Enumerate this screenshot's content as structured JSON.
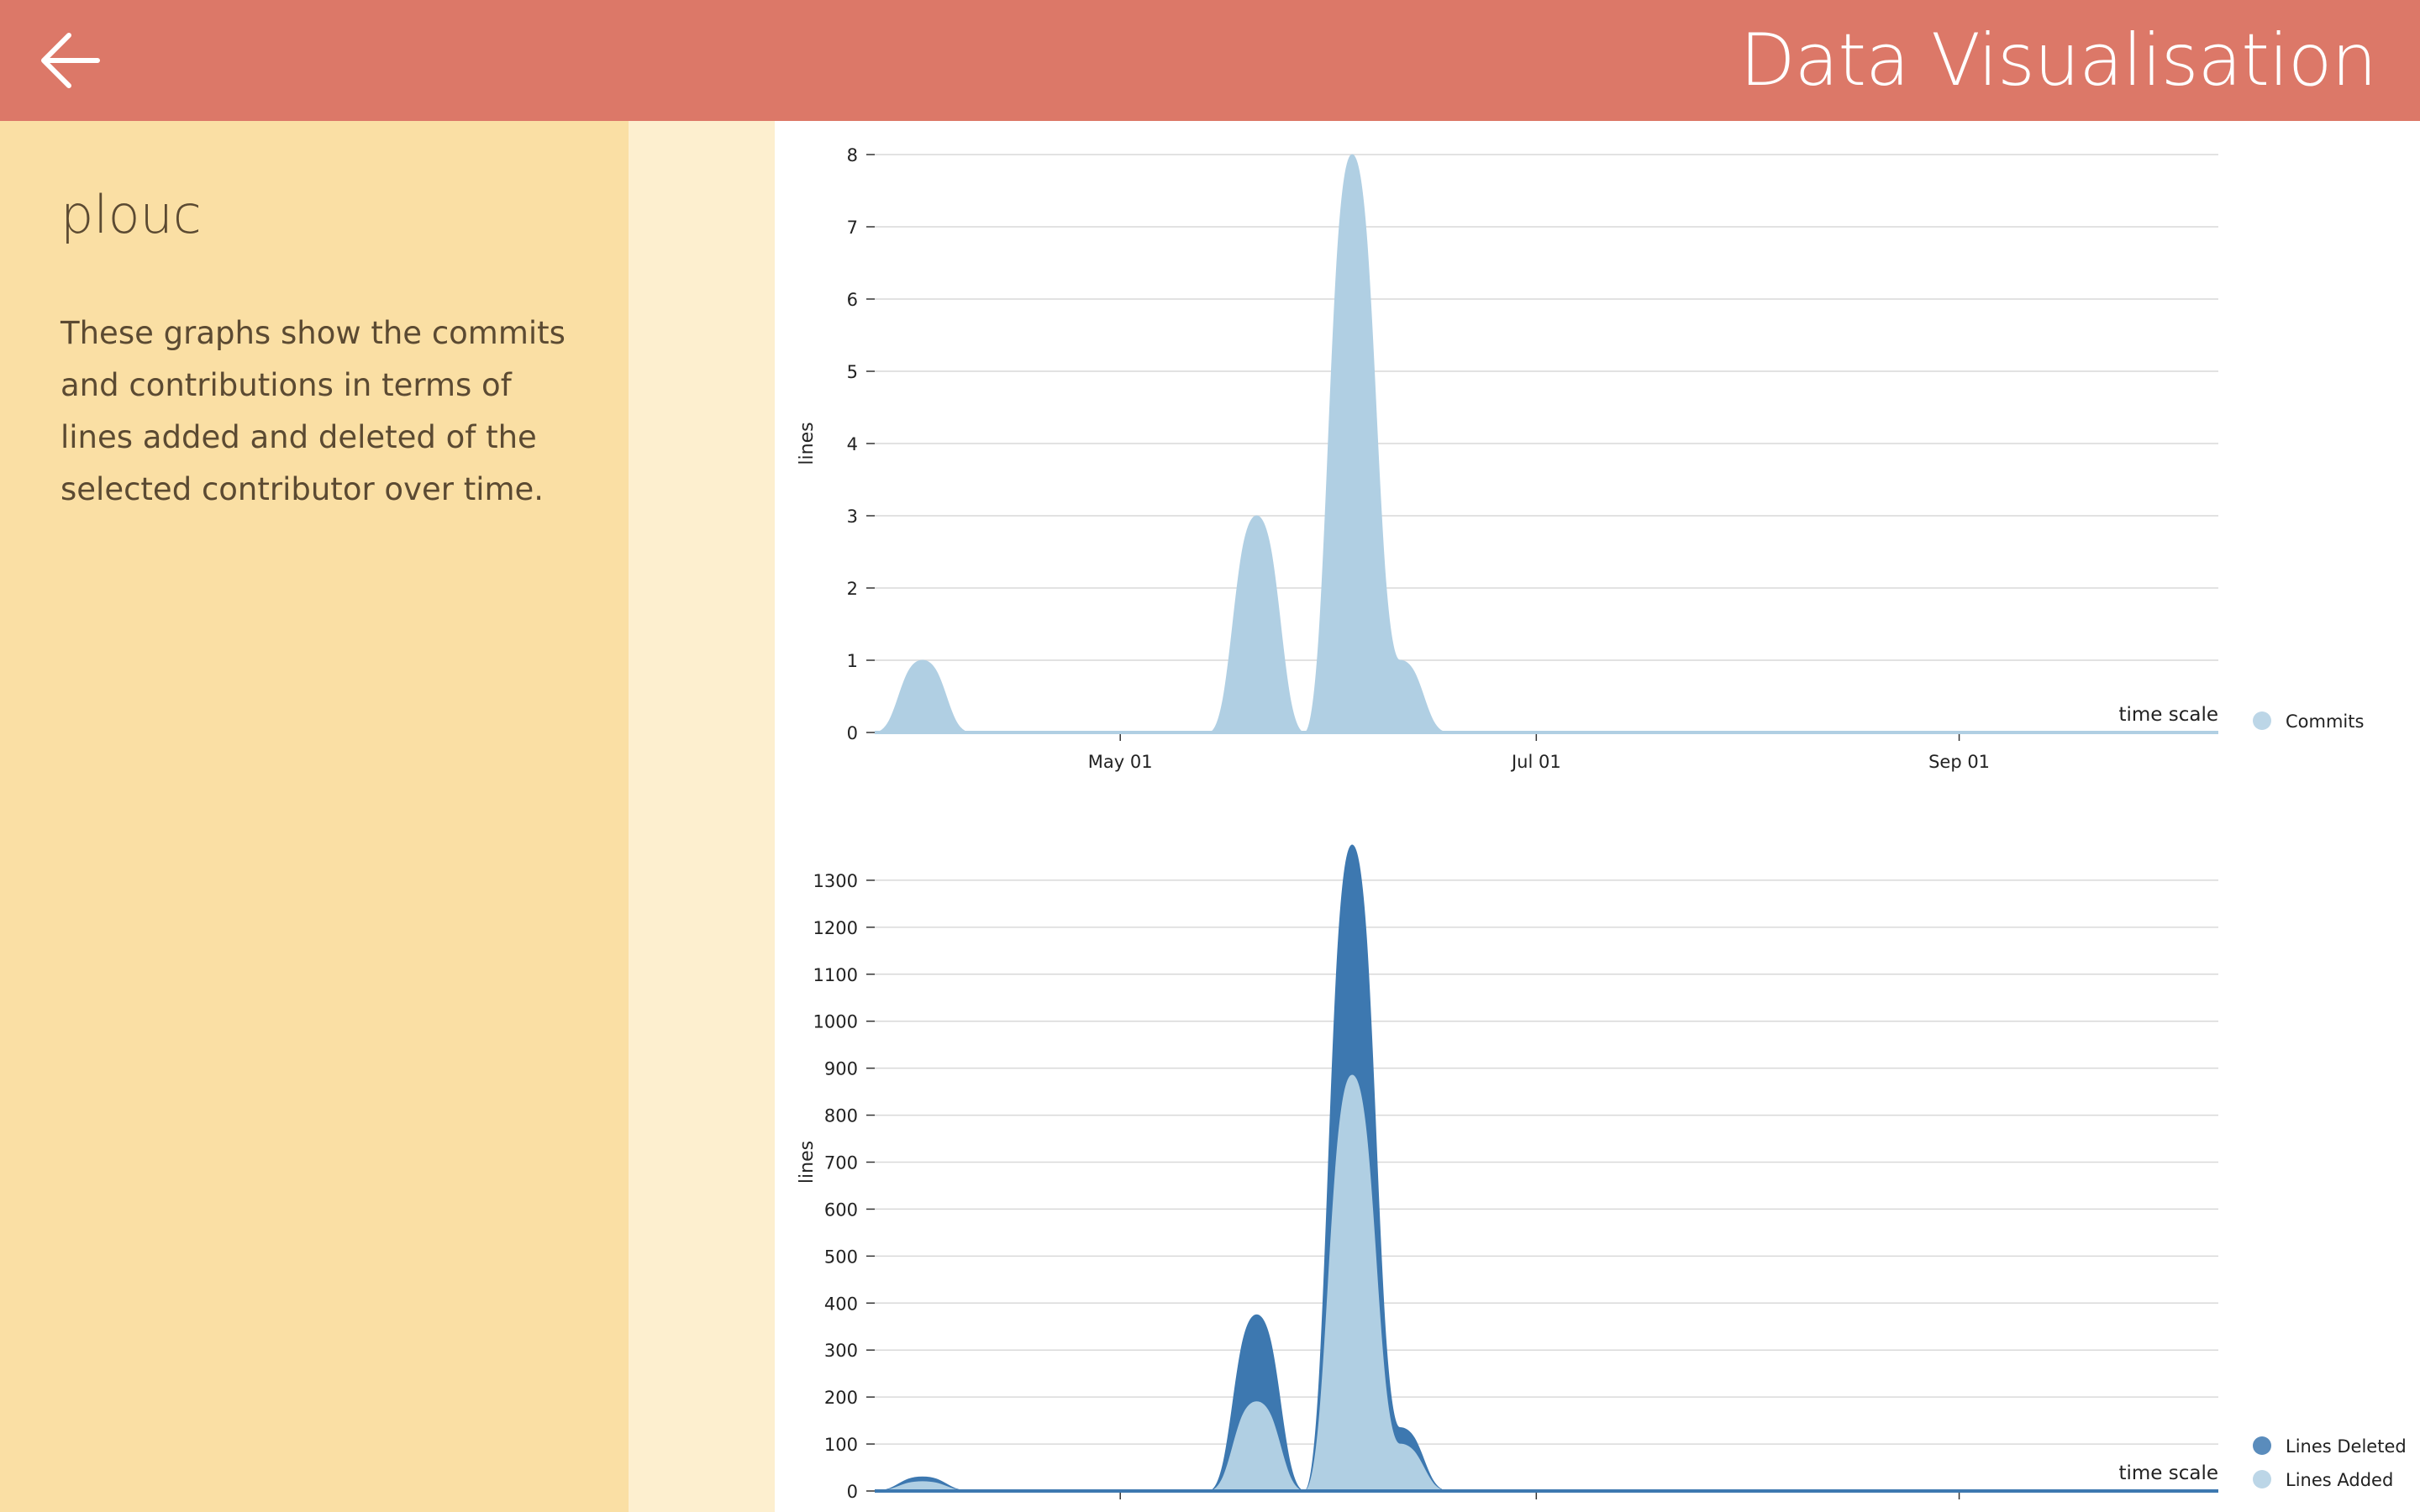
{
  "header": {
    "title": "Data Visualisation",
    "back_icon": "arrow-left-icon"
  },
  "sidebar": {
    "contributor": "plouc",
    "description": "These graphs show the commits and contributions in terms of lines added and deleted of the selected contributor over time."
  },
  "colors": {
    "header": "#dc7868",
    "sidebar": "#fadfa4",
    "added": "#b0cfe3",
    "deleted": "#3d78b0"
  },
  "chart_data": [
    {
      "type": "area",
      "title": "",
      "xlabel": "time scale",
      "ylabel": "lines",
      "xlim": [
        "2016-03-26",
        "2016-10-09"
      ],
      "ylim": [
        0,
        8
      ],
      "yticks": [
        "0",
        "1",
        "2",
        "3",
        "4",
        "5",
        "6",
        "7",
        "8"
      ],
      "xticks": [
        {
          "label": "May 01",
          "date": "2016-05-01"
        },
        {
          "label": "Jul 01",
          "date": "2016-07-01"
        },
        {
          "label": "Sep 01",
          "date": "2016-09-01"
        }
      ],
      "grid": true,
      "legend_position": "right-bottom",
      "series": [
        {
          "name": "Commits",
          "color": "#b0cfe3",
          "points": [
            {
              "x": "2016-03-26",
              "y": 0
            },
            {
              "x": "2016-04-02",
              "y": 1
            },
            {
              "x": "2016-04-09",
              "y": 0
            },
            {
              "x": "2016-04-16",
              "y": 0
            },
            {
              "x": "2016-04-23",
              "y": 0
            },
            {
              "x": "2016-04-30",
              "y": 0
            },
            {
              "x": "2016-05-07",
              "y": 0
            },
            {
              "x": "2016-05-14",
              "y": 0
            },
            {
              "x": "2016-05-21",
              "y": 3
            },
            {
              "x": "2016-05-28",
              "y": 0
            },
            {
              "x": "2016-06-04",
              "y": 8
            },
            {
              "x": "2016-06-11",
              "y": 1
            },
            {
              "x": "2016-06-18",
              "y": 0
            },
            {
              "x": "2016-06-25",
              "y": 0
            },
            {
              "x": "2016-10-09",
              "y": 0
            }
          ]
        }
      ]
    },
    {
      "type": "area",
      "title": "",
      "xlabel": "time scale",
      "ylabel": "lines",
      "xlim": [
        "2016-03-26",
        "2016-10-09"
      ],
      "ylim": [
        0,
        1400
      ],
      "yticks": [
        "0",
        "100",
        "200",
        "300",
        "400",
        "500",
        "600",
        "700",
        "800",
        "900",
        "1000",
        "1100",
        "1200",
        "1300"
      ],
      "xticks": [
        {
          "label": "May 01",
          "date": "2016-05-01"
        },
        {
          "label": "Jul 01",
          "date": "2016-07-01"
        },
        {
          "label": "Sep 01",
          "date": "2016-09-01"
        }
      ],
      "grid": true,
      "stacked": true,
      "legend_position": "right-bottom",
      "series": [
        {
          "name": "Lines Deleted",
          "color": "#3d78b0",
          "points": [
            {
              "x": "2016-03-26",
              "y": 0
            },
            {
              "x": "2016-04-02",
              "y": 10
            },
            {
              "x": "2016-04-09",
              "y": 0
            },
            {
              "x": "2016-04-16",
              "y": 0
            },
            {
              "x": "2016-04-23",
              "y": 0
            },
            {
              "x": "2016-04-30",
              "y": 0
            },
            {
              "x": "2016-05-07",
              "y": 0
            },
            {
              "x": "2016-05-14",
              "y": 0
            },
            {
              "x": "2016-05-21",
              "y": 185
            },
            {
              "x": "2016-05-28",
              "y": 0
            },
            {
              "x": "2016-06-04",
              "y": 490
            },
            {
              "x": "2016-06-11",
              "y": 35
            },
            {
              "x": "2016-06-18",
              "y": 0
            },
            {
              "x": "2016-06-25",
              "y": 0
            },
            {
              "x": "2016-10-09",
              "y": 0
            }
          ]
        },
        {
          "name": "Lines Added",
          "color": "#b0cfe3",
          "points": [
            {
              "x": "2016-03-26",
              "y": 0
            },
            {
              "x": "2016-04-02",
              "y": 20
            },
            {
              "x": "2016-04-09",
              "y": 0
            },
            {
              "x": "2016-04-16",
              "y": 0
            },
            {
              "x": "2016-04-23",
              "y": 0
            },
            {
              "x": "2016-04-30",
              "y": 0
            },
            {
              "x": "2016-05-07",
              "y": 0
            },
            {
              "x": "2016-05-14",
              "y": 0
            },
            {
              "x": "2016-05-21",
              "y": 190
            },
            {
              "x": "2016-05-28",
              "y": 0
            },
            {
              "x": "2016-06-04",
              "y": 885
            },
            {
              "x": "2016-06-11",
              "y": 100
            },
            {
              "x": "2016-06-18",
              "y": 0
            },
            {
              "x": "2016-06-25",
              "y": 0
            },
            {
              "x": "2016-10-09",
              "y": 0
            }
          ]
        }
      ]
    }
  ]
}
